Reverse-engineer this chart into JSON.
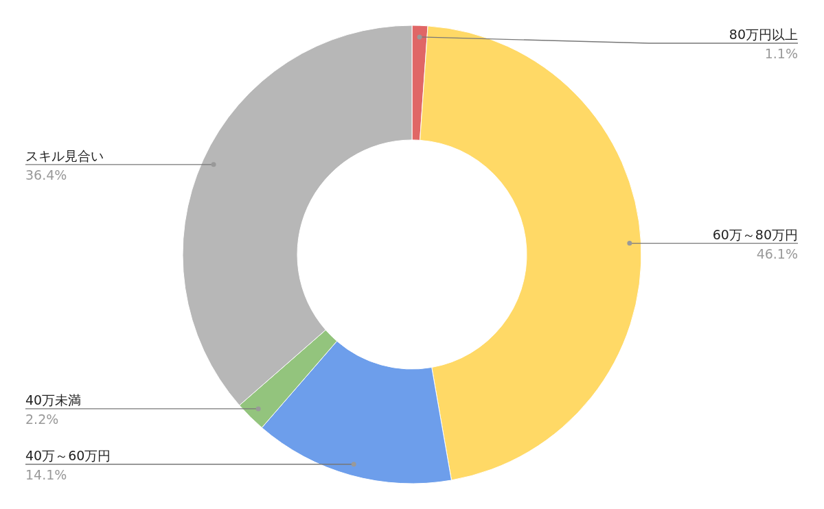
{
  "chart_data": {
    "type": "donut",
    "categories": [
      "80万円以上",
      "60万～80万円",
      "40万～60万円",
      "40万未満",
      "スキル見合い"
    ],
    "values": [
      1.1,
      46.1,
      14.1,
      2.2,
      36.4
    ],
    "colors": [
      "#e06666",
      "#ffd966",
      "#6d9eeb",
      "#93c47d",
      "#b7b7b7"
    ],
    "value_labels": [
      "1.1%",
      "46.1%",
      "14.1%",
      "2.2%",
      "36.4%"
    ]
  }
}
